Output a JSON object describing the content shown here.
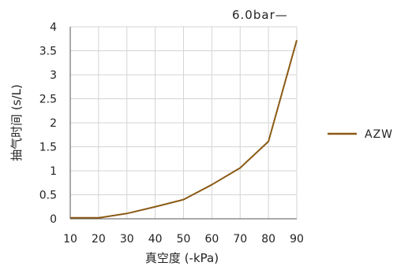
{
  "chart_data": {
    "type": "line",
    "title": "",
    "annotation": "6.0bar—",
    "xlabel": "真空度 (-kPa)",
    "ylabel": "抽气时间 (s/L)",
    "xlim": [
      10,
      90
    ],
    "ylim": [
      0,
      4
    ],
    "x_ticks": [
      "10",
      "20",
      "30",
      "40",
      "50",
      "60",
      "70",
      "80",
      "90"
    ],
    "y_ticks": [
      "0",
      "0.5",
      "1",
      "1.5",
      "2",
      "2.5",
      "3",
      "3.5",
      "4"
    ],
    "grid": true,
    "legend_position": "right",
    "x": [
      10,
      20,
      30,
      40,
      50,
      60,
      70,
      80,
      90
    ],
    "series": [
      {
        "name": "AZW",
        "color": "#8B5A14",
        "values": [
          0.02,
          0.02,
          0.11,
          0.25,
          0.4,
          0.71,
          1.06,
          1.61,
          3.72
        ]
      }
    ]
  }
}
